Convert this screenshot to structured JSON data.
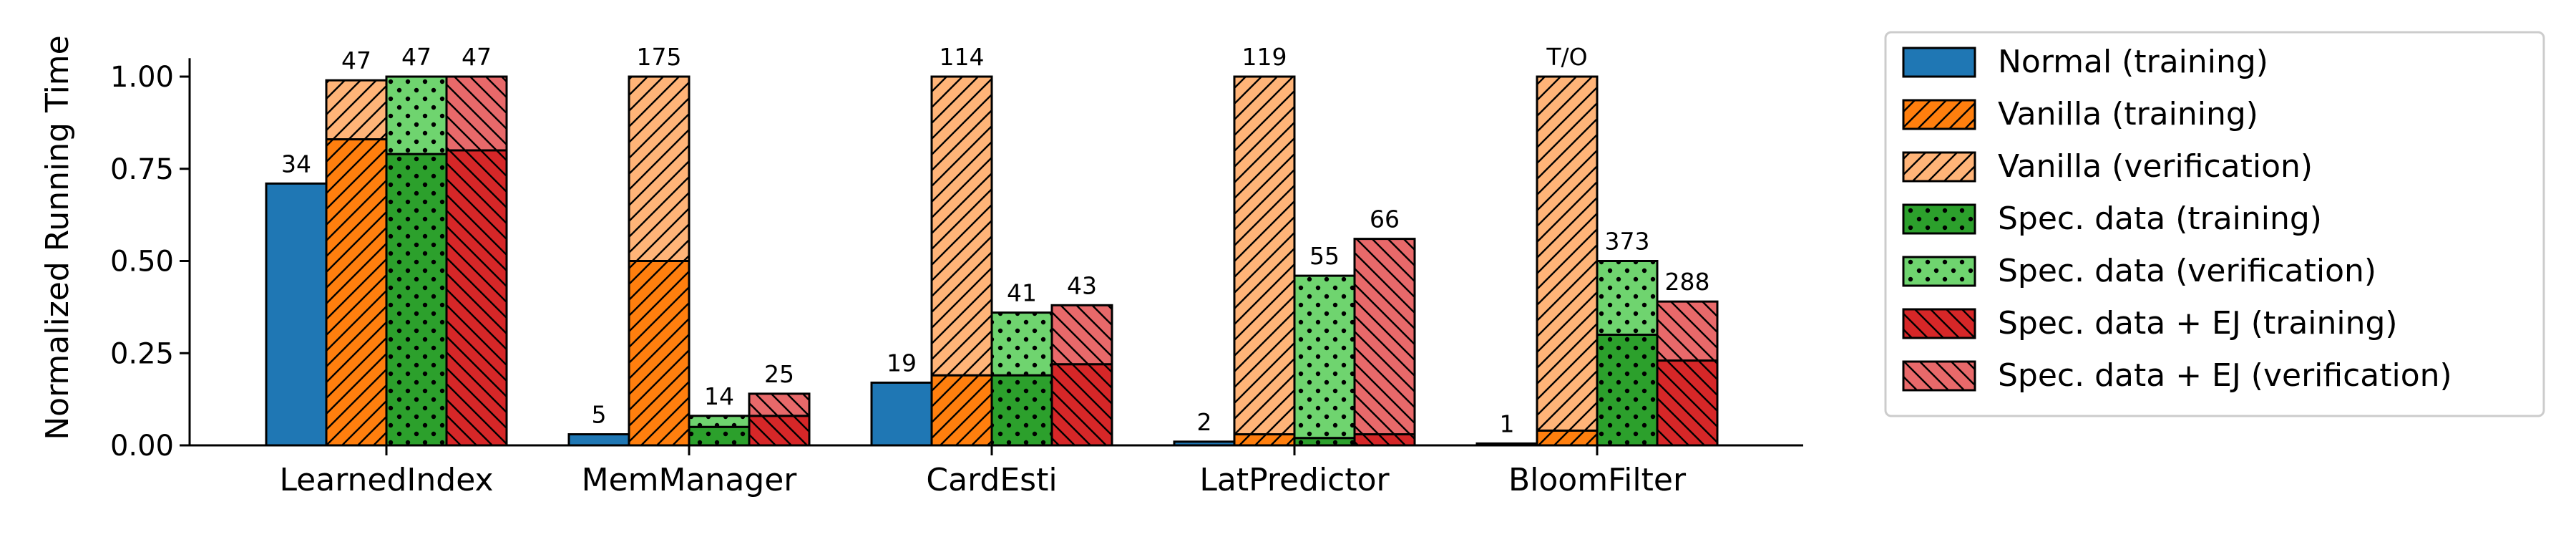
{
  "chart_data": {
    "type": "bar",
    "title": "",
    "xlabel": "",
    "ylabel": "Normalized Running Time",
    "ylim": [
      0,
      1.05
    ],
    "yticks": [
      "0.00",
      "0.25",
      "0.50",
      "0.75",
      "1.00"
    ],
    "grid": false,
    "legend_position": "outside-right",
    "categories": [
      "LearnedIndex",
      "MemManager",
      "CardEsti",
      "LatPredictor",
      "BloomFilter"
    ],
    "legend": [
      {
        "name": "Normal (training)",
        "color": "#1f77b4",
        "pattern": "none"
      },
      {
        "name": "Vanilla (training)",
        "color": "#ff7f0e",
        "pattern": "backslash"
      },
      {
        "name": "Vanilla (verification)",
        "color": "#ffb478",
        "pattern": "backslash"
      },
      {
        "name": "Spec. data (training)",
        "color": "#2ca02c",
        "pattern": "dots"
      },
      {
        "name": "Spec. data (verification)",
        "color": "#6fd46f",
        "pattern": "dots"
      },
      {
        "name": "Spec. data + EJ (training)",
        "color": "#d62728",
        "pattern": "slash"
      },
      {
        "name": "Spec. data + EJ (verification)",
        "color": "#e8696a",
        "pattern": "slash"
      }
    ],
    "groups": [
      {
        "name": "Normal",
        "training": [
          0.71,
          0.03,
          0.17,
          0.01,
          0.005
        ],
        "verification": null,
        "labels": [
          "34",
          "5",
          "19",
          "2",
          "1"
        ]
      },
      {
        "name": "Vanilla",
        "training": [
          0.83,
          0.5,
          0.19,
          0.03,
          0.04
        ],
        "verification": [
          0.16,
          0.5,
          0.81,
          0.97,
          0.96
        ],
        "labels": [
          "47",
          "175",
          "114",
          "119",
          "T/O"
        ]
      },
      {
        "name": "Spec. data",
        "training": [
          0.79,
          0.05,
          0.19,
          0.02,
          0.3
        ],
        "verification": [
          0.21,
          0.03,
          0.17,
          0.44,
          0.2
        ],
        "labels": [
          "47",
          "14",
          "41",
          "55",
          "373"
        ]
      },
      {
        "name": "Spec. data + EJ",
        "training": [
          0.8,
          0.08,
          0.22,
          0.03,
          0.23
        ],
        "verification": [
          0.2,
          0.06,
          0.16,
          0.53,
          0.16
        ],
        "labels": [
          "47",
          "25",
          "43",
          "66",
          "288"
        ]
      }
    ]
  }
}
